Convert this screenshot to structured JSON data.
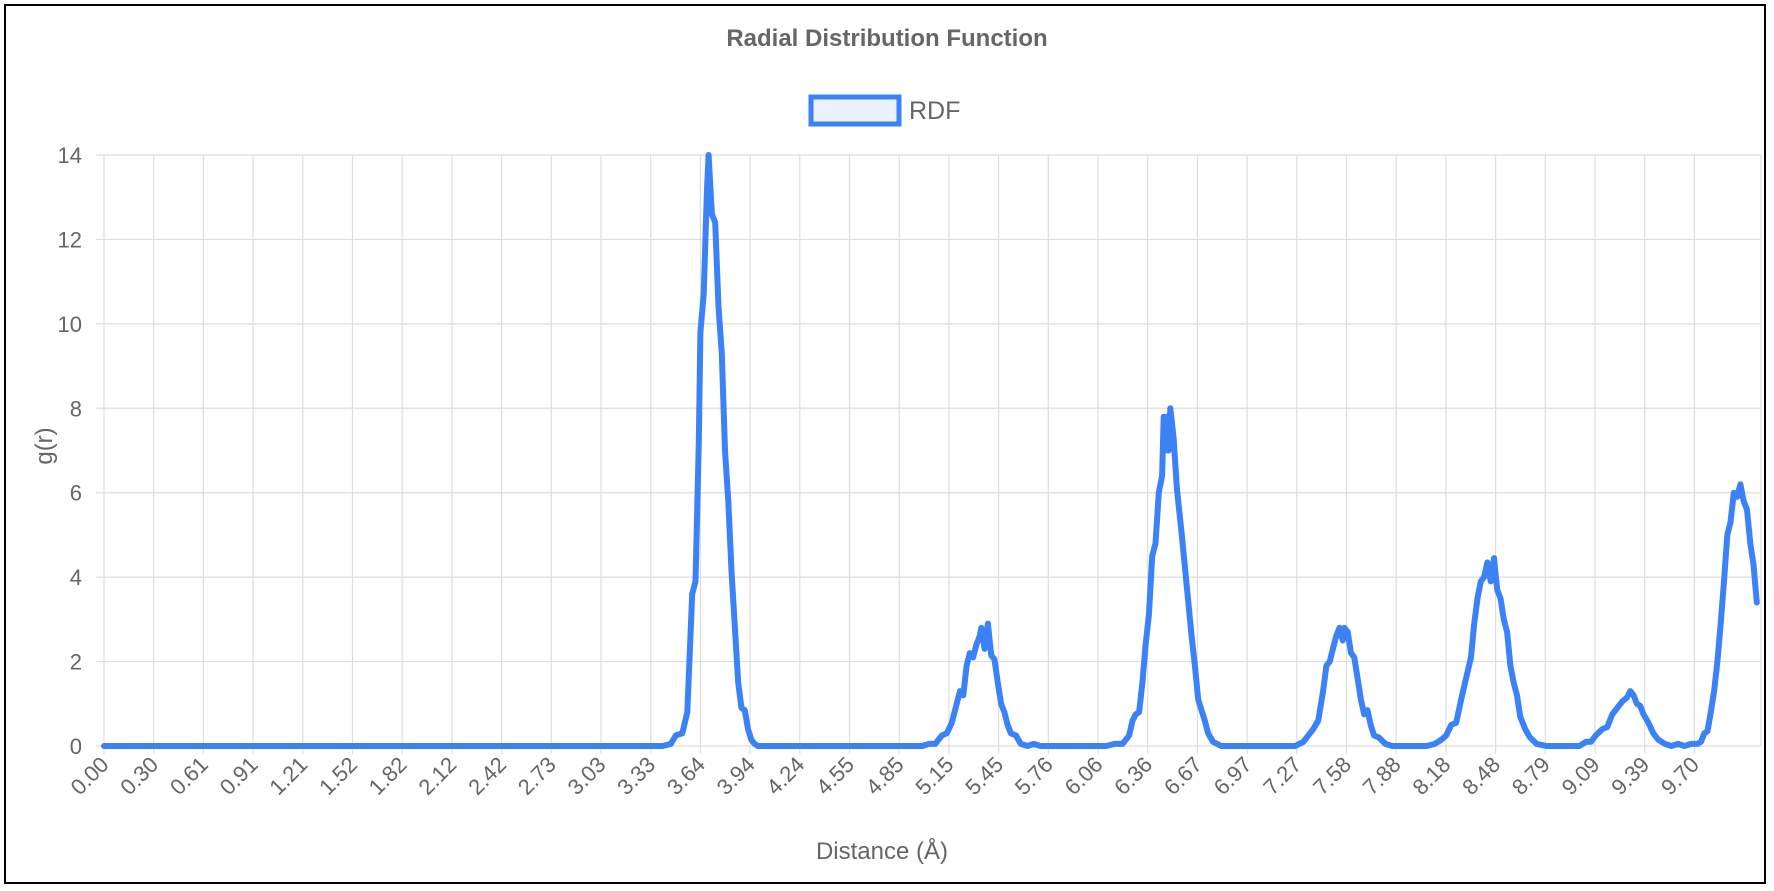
{
  "chart_data": {
    "type": "line",
    "title": "Radial Distribution Function",
    "xlabel": "Distance (Å)",
    "ylabel": "g(r)",
    "legend": {
      "position": "top",
      "entries": [
        "RDF"
      ]
    },
    "grid": true,
    "colors": {
      "line": "#3b82f6",
      "legend_fill": "#eaf2fd",
      "grid": "#dedede",
      "text": "#666666"
    },
    "x_ticks": [
      "0.00",
      "0.30",
      "0.61",
      "0.91",
      "1.21",
      "1.52",
      "1.82",
      "2.12",
      "2.42",
      "2.73",
      "3.03",
      "3.33",
      "3.64",
      "3.94",
      "4.24",
      "4.55",
      "4.85",
      "5.15",
      "5.45",
      "5.76",
      "6.06",
      "6.36",
      "6.67",
      "6.97",
      "7.27",
      "7.58",
      "7.88",
      "8.18",
      "8.48",
      "8.79",
      "9.09",
      "9.39",
      "9.70"
    ],
    "y_ticks": [
      "0",
      "2",
      "4",
      "6",
      "8",
      "10",
      "12",
      "14"
    ],
    "xlim": [
      0.0,
      9.9
    ],
    "ylim": [
      0,
      14
    ],
    "series": [
      {
        "name": "RDF",
        "points": [
          [
            0.0,
            0
          ],
          [
            3.4,
            0
          ],
          [
            3.45,
            0.05
          ],
          [
            3.48,
            0.25
          ],
          [
            3.52,
            0.3
          ],
          [
            3.55,
            0.8
          ],
          [
            3.58,
            3.6
          ],
          [
            3.6,
            3.9
          ],
          [
            3.62,
            7.2
          ],
          [
            3.63,
            9.8
          ],
          [
            3.65,
            10.7
          ],
          [
            3.67,
            13.2
          ],
          [
            3.68,
            14.0
          ],
          [
            3.7,
            12.6
          ],
          [
            3.72,
            12.4
          ],
          [
            3.74,
            10.4
          ],
          [
            3.76,
            9.3
          ],
          [
            3.78,
            7.0
          ],
          [
            3.8,
            5.8
          ],
          [
            3.82,
            4.1
          ],
          [
            3.84,
            2.8
          ],
          [
            3.86,
            1.5
          ],
          [
            3.88,
            0.9
          ],
          [
            3.9,
            0.85
          ],
          [
            3.92,
            0.4
          ],
          [
            3.94,
            0.15
          ],
          [
            3.96,
            0.05
          ],
          [
            3.98,
            0
          ],
          [
            4.98,
            0
          ],
          [
            5.02,
            0.05
          ],
          [
            5.06,
            0.05
          ],
          [
            5.1,
            0.25
          ],
          [
            5.13,
            0.3
          ],
          [
            5.16,
            0.55
          ],
          [
            5.19,
            1.0
          ],
          [
            5.21,
            1.3
          ],
          [
            5.23,
            1.2
          ],
          [
            5.25,
            1.9
          ],
          [
            5.27,
            2.2
          ],
          [
            5.29,
            2.1
          ],
          [
            5.31,
            2.4
          ],
          [
            5.33,
            2.6
          ],
          [
            5.34,
            2.8
          ],
          [
            5.36,
            2.3
          ],
          [
            5.38,
            2.9
          ],
          [
            5.4,
            2.15
          ],
          [
            5.42,
            2.05
          ],
          [
            5.44,
            1.5
          ],
          [
            5.46,
            1.0
          ],
          [
            5.48,
            0.8
          ],
          [
            5.5,
            0.5
          ],
          [
            5.52,
            0.3
          ],
          [
            5.55,
            0.25
          ],
          [
            5.58,
            0.05
          ],
          [
            5.62,
            0
          ],
          [
            5.66,
            0.05
          ],
          [
            5.7,
            0
          ],
          [
            6.1,
            0
          ],
          [
            6.15,
            0.05
          ],
          [
            6.2,
            0.05
          ],
          [
            6.24,
            0.25
          ],
          [
            6.26,
            0.6
          ],
          [
            6.28,
            0.75
          ],
          [
            6.3,
            0.8
          ],
          [
            6.32,
            1.5
          ],
          [
            6.34,
            2.4
          ],
          [
            6.36,
            3.1
          ],
          [
            6.38,
            4.5
          ],
          [
            6.4,
            4.8
          ],
          [
            6.42,
            6.0
          ],
          [
            6.44,
            6.4
          ],
          [
            6.45,
            7.8
          ],
          [
            6.46,
            7.0
          ],
          [
            6.47,
            7.8
          ],
          [
            6.48,
            7.0
          ],
          [
            6.49,
            8.0
          ],
          [
            6.51,
            7.3
          ],
          [
            6.53,
            6.1
          ],
          [
            6.56,
            5.0
          ],
          [
            6.59,
            3.8
          ],
          [
            6.62,
            2.6
          ],
          [
            6.64,
            1.9
          ],
          [
            6.66,
            1.1
          ],
          [
            6.68,
            0.85
          ],
          [
            6.7,
            0.6
          ],
          [
            6.72,
            0.3
          ],
          [
            6.75,
            0.1
          ],
          [
            6.8,
            0
          ],
          [
            7.25,
            0
          ],
          [
            7.3,
            0.1
          ],
          [
            7.33,
            0.25
          ],
          [
            7.36,
            0.4
          ],
          [
            7.39,
            0.6
          ],
          [
            7.42,
            1.3
          ],
          [
            7.44,
            1.9
          ],
          [
            7.46,
            2.0
          ],
          [
            7.48,
            2.3
          ],
          [
            7.5,
            2.6
          ],
          [
            7.52,
            2.8
          ],
          [
            7.54,
            2.5
          ],
          [
            7.55,
            2.8
          ],
          [
            7.57,
            2.7
          ],
          [
            7.59,
            2.2
          ],
          [
            7.61,
            2.1
          ],
          [
            7.63,
            1.6
          ],
          [
            7.65,
            1.1
          ],
          [
            7.67,
            0.75
          ],
          [
            7.69,
            0.85
          ],
          [
            7.71,
            0.5
          ],
          [
            7.73,
            0.25
          ],
          [
            7.76,
            0.2
          ],
          [
            7.8,
            0.05
          ],
          [
            7.84,
            0
          ],
          [
            8.05,
            0
          ],
          [
            8.1,
            0.05
          ],
          [
            8.14,
            0.15
          ],
          [
            8.17,
            0.25
          ],
          [
            8.2,
            0.5
          ],
          [
            8.23,
            0.55
          ],
          [
            8.26,
            1.1
          ],
          [
            8.29,
            1.6
          ],
          [
            8.32,
            2.1
          ],
          [
            8.34,
            2.9
          ],
          [
            8.36,
            3.5
          ],
          [
            8.38,
            3.9
          ],
          [
            8.4,
            4.0
          ],
          [
            8.42,
            4.35
          ],
          [
            8.44,
            3.9
          ],
          [
            8.46,
            4.45
          ],
          [
            8.48,
            3.7
          ],
          [
            8.5,
            3.5
          ],
          [
            8.52,
            3.0
          ],
          [
            8.54,
            2.7
          ],
          [
            8.56,
            1.9
          ],
          [
            8.58,
            1.5
          ],
          [
            8.6,
            1.2
          ],
          [
            8.62,
            0.7
          ],
          [
            8.65,
            0.4
          ],
          [
            8.68,
            0.2
          ],
          [
            8.72,
            0.05
          ],
          [
            8.78,
            0
          ],
          [
            8.98,
            0
          ],
          [
            9.02,
            0.1
          ],
          [
            9.05,
            0.1
          ],
          [
            9.08,
            0.25
          ],
          [
            9.12,
            0.4
          ],
          [
            9.15,
            0.45
          ],
          [
            9.18,
            0.75
          ],
          [
            9.21,
            0.9
          ],
          [
            9.24,
            1.05
          ],
          [
            9.27,
            1.15
          ],
          [
            9.29,
            1.3
          ],
          [
            9.31,
            1.2
          ],
          [
            9.33,
            1.0
          ],
          [
            9.35,
            0.95
          ],
          [
            9.37,
            0.75
          ],
          [
            9.4,
            0.55
          ],
          [
            9.43,
            0.3
          ],
          [
            9.46,
            0.15
          ],
          [
            9.5,
            0.05
          ],
          [
            9.54,
            0
          ],
          [
            9.58,
            0.05
          ],
          [
            9.62,
            0
          ],
          [
            9.66,
            0.05
          ],
          [
            9.7,
            0.05
          ],
          [
            9.72,
            0.1
          ],
          [
            9.74,
            0.3
          ],
          [
            9.76,
            0.35
          ],
          [
            9.78,
            0.8
          ],
          [
            9.8,
            1.3
          ],
          [
            9.82,
            2.0
          ],
          [
            9.84,
            2.9
          ],
          [
            9.86,
            3.9
          ],
          [
            9.88,
            5.0
          ],
          [
            9.9,
            5.3
          ],
          [
            9.92,
            6.0
          ],
          [
            9.94,
            5.9
          ],
          [
            9.96,
            6.2
          ],
          [
            9.98,
            5.8
          ],
          [
            10.0,
            5.6
          ],
          [
            10.02,
            4.8
          ],
          [
            10.04,
            4.3
          ],
          [
            10.06,
            3.4
          ]
        ]
      }
    ]
  }
}
